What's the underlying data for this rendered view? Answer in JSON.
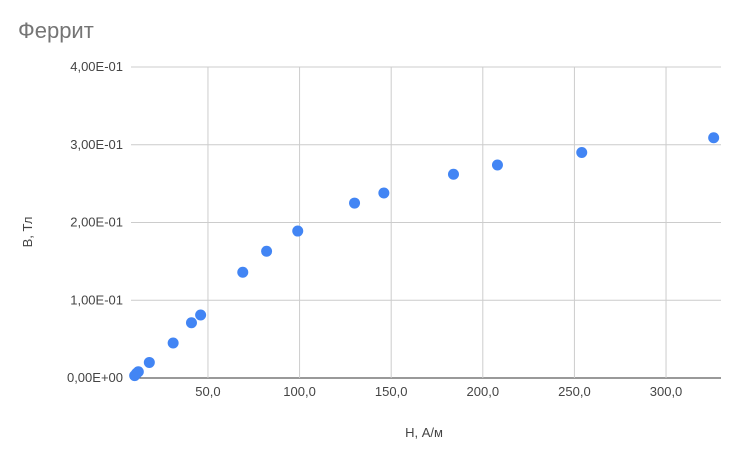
{
  "chart_data": {
    "type": "scatter",
    "title": "Феррит",
    "xlabel": "H, А/м",
    "ylabel": "B, Тл",
    "xlim": [
      8,
      330
    ],
    "ylim": [
      0,
      0.4
    ],
    "x_ticks": [
      {
        "value": 50,
        "label": "50,0"
      },
      {
        "value": 100,
        "label": "100,0"
      },
      {
        "value": 150,
        "label": "150,0"
      },
      {
        "value": 200,
        "label": "200,0"
      },
      {
        "value": 250,
        "label": "250,0"
      },
      {
        "value": 300,
        "label": "300,0"
      }
    ],
    "y_ticks": [
      {
        "value": 0,
        "label": "0,00E+00"
      },
      {
        "value": 0.1,
        "label": "1,00E-01"
      },
      {
        "value": 0.2,
        "label": "2,00E-01"
      },
      {
        "value": 0.3,
        "label": "3,00E-01"
      },
      {
        "value": 0.4,
        "label": "4,00E-01"
      }
    ],
    "grid": true,
    "legend": "none",
    "series": [
      {
        "color": "#4285f4",
        "points": [
          {
            "x": 10,
            "y": 0.003
          },
          {
            "x": 11,
            "y": 0.006
          },
          {
            "x": 12,
            "y": 0.008
          },
          {
            "x": 18,
            "y": 0.02
          },
          {
            "x": 31,
            "y": 0.045
          },
          {
            "x": 41,
            "y": 0.071
          },
          {
            "x": 46,
            "y": 0.081
          },
          {
            "x": 69,
            "y": 0.136
          },
          {
            "x": 82,
            "y": 0.163
          },
          {
            "x": 99,
            "y": 0.189
          },
          {
            "x": 130,
            "y": 0.225
          },
          {
            "x": 146,
            "y": 0.238
          },
          {
            "x": 184,
            "y": 0.262
          },
          {
            "x": 208,
            "y": 0.274
          },
          {
            "x": 254,
            "y": 0.29
          },
          {
            "x": 326,
            "y": 0.309
          }
        ]
      }
    ]
  }
}
